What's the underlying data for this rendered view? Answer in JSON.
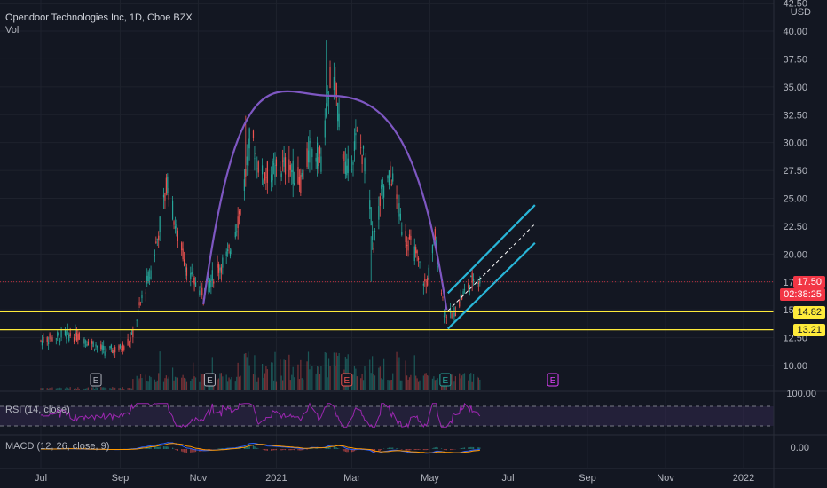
{
  "header": {
    "title": "Opendoor Technologies Inc, 1D, Cboe BZX",
    "vol_label": "Vol",
    "currency": "USD"
  },
  "price_tags": {
    "last_price": "17.50",
    "countdown": "02:38:25",
    "level_1": "14.82",
    "level_2": "13.21"
  },
  "indicators": {
    "rsi_label": "RSI (14, close)",
    "rsi_scale_label": "100.00",
    "macd_label": "MACD (12, 26, close, 9)",
    "macd_zero_label": "0.00"
  },
  "chart_data": {
    "type": "candlestick",
    "title": "Opendoor Technologies Inc, 1D, Cboe BZX",
    "y_axis_ticks": [
      "42.50",
      "40.00",
      "37.50",
      "35.00",
      "32.50",
      "30.00",
      "27.50",
      "25.00",
      "22.50",
      "20.00",
      "17.50",
      "15.00",
      "12.50",
      "10.00"
    ],
    "x_axis_ticks": [
      "Jul",
      "Sep",
      "Nov",
      "2021",
      "Mar",
      "May",
      "Jul",
      "Sep",
      "Nov",
      "2022"
    ],
    "ylim": [
      7.5,
      42.5
    ],
    "series_close_path": [
      [
        "2020-07-01",
        12.2
      ],
      [
        "2020-07-20",
        12.8
      ],
      [
        "2020-08-01",
        12.6
      ],
      [
        "2020-08-20",
        11.3
      ],
      [
        "2020-09-01",
        11.5
      ],
      [
        "2020-09-10",
        12.5
      ],
      [
        "2020-09-18",
        16.0
      ],
      [
        "2020-09-25",
        18.5
      ],
      [
        "2020-10-01",
        22.0
      ],
      [
        "2020-10-08",
        26.5
      ],
      [
        "2020-10-15",
        22.0
      ],
      [
        "2020-10-25",
        18.0
      ],
      [
        "2020-11-05",
        16.5
      ],
      [
        "2020-11-15",
        18.5
      ],
      [
        "2020-11-25",
        20.0
      ],
      [
        "2020-12-05",
        24.5
      ],
      [
        "2020-12-12",
        31.0
      ],
      [
        "2020-12-20",
        27.0
      ],
      [
        "2021-01-01",
        27.5
      ],
      [
        "2021-01-10",
        28.0
      ],
      [
        "2021-01-20",
        26.5
      ],
      [
        "2021-01-28",
        29.5
      ],
      [
        "2021-02-05",
        28.5
      ],
      [
        "2021-02-10",
        33.5
      ],
      [
        "2021-02-12",
        36.0
      ],
      [
        "2021-02-17",
        34.0
      ],
      [
        "2021-02-25",
        27.0
      ],
      [
        "2021-03-05",
        30.5
      ],
      [
        "2021-03-12",
        28.0
      ],
      [
        "2021-03-18",
        21.0
      ],
      [
        "2021-03-25",
        26.0
      ],
      [
        "2021-04-01",
        27.0
      ],
      [
        "2021-04-10",
        22.0
      ],
      [
        "2021-04-20",
        20.0
      ],
      [
        "2021-04-28",
        17.0
      ],
      [
        "2021-05-05",
        21.5
      ],
      [
        "2021-05-12",
        15.0
      ],
      [
        "2021-05-18",
        14.3
      ],
      [
        "2021-05-25",
        16.0
      ],
      [
        "2021-06-02",
        17.5
      ],
      [
        "2021-06-06",
        18.2
      ],
      [
        "2021-06-09",
        17.5
      ]
    ],
    "horizontal_levels": [
      14.82,
      13.21
    ],
    "earnings_markers": [
      "2020-08-13",
      "2020-11-10",
      "2021-02-25",
      "2021-05-13",
      "2021-08-05"
    ],
    "annotations": [
      "rounded top arc",
      "ascending parallel channel"
    ],
    "indicators": [
      "Vol",
      "RSI (14, close)",
      "MACD (12, 26, close, 9)"
    ]
  },
  "colors": {
    "background": "#131722",
    "up": "#26a69a",
    "down": "#ef5350",
    "arc": "#7e57c2",
    "channel": "#29b6d8",
    "level_line": "#ffeb3b",
    "rsi": "#9c27b0",
    "macd_line": "#2962ff",
    "signal_line": "#ff9800",
    "grid": "#1e222d",
    "earnings_future": "#e040fb"
  },
  "icons": {
    "earnings_marker": "E"
  }
}
